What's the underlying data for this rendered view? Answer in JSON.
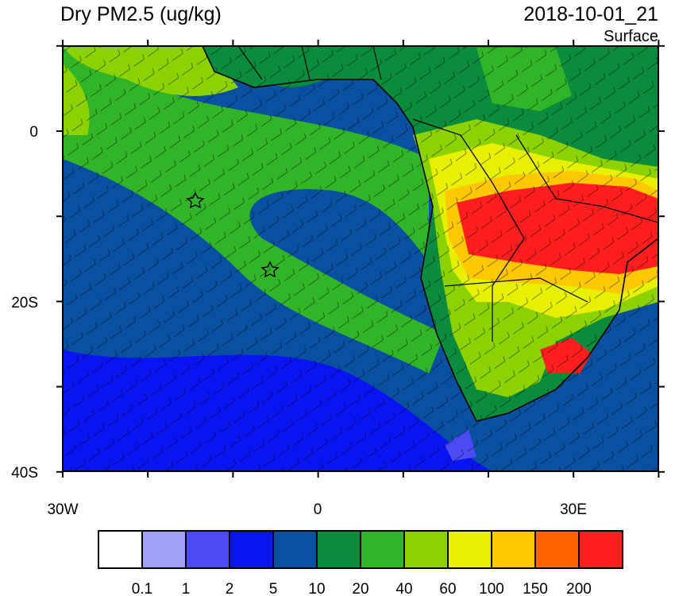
{
  "header": {
    "title": "Dry PM2.5 (ug/kg)",
    "timestamp": "2018-10-01_21",
    "level": "Surface"
  },
  "map": {
    "lat_labels": [
      "0",
      "20S",
      "40S"
    ],
    "lon_labels": [
      "30W",
      "0",
      "30E"
    ]
  },
  "colorbar": {
    "colors": [
      "#ffffff",
      "#a0a0f5",
      "#4b4bf5",
      "#0a14f0",
      "#0a50a0",
      "#0a8c3c",
      "#32b428",
      "#8cd200",
      "#e6f000",
      "#ffc800",
      "#ff6400",
      "#ff1e1e"
    ],
    "labels": [
      "0.1",
      "1",
      "2",
      "5",
      "10",
      "20",
      "40",
      "60",
      "100",
      "150",
      "200"
    ]
  }
}
